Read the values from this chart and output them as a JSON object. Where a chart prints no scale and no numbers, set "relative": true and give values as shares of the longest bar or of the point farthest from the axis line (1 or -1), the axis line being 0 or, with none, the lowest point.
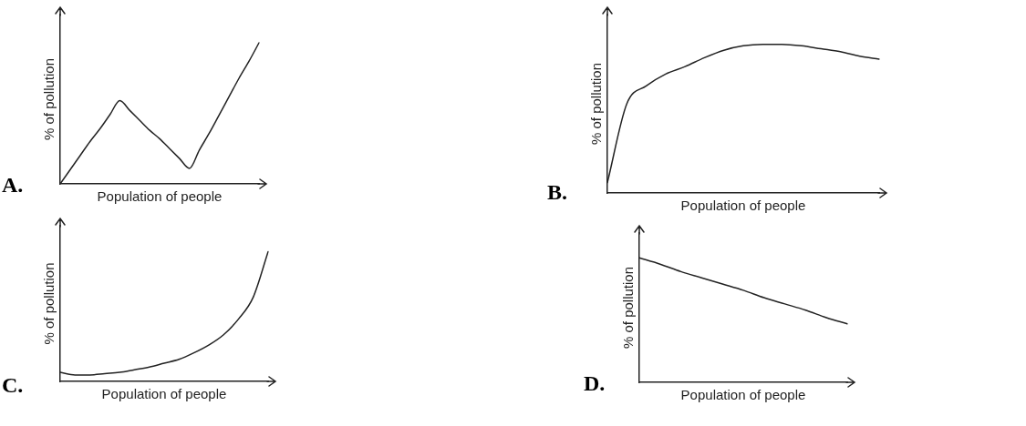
{
  "chart_data": [
    {
      "type": "line",
      "title": "A.",
      "xlabel": "Population of people",
      "ylabel": "% of pollution",
      "relative": true,
      "tick_labels": false,
      "grid": false,
      "legend": false,
      "marker": "none",
      "line_style": "solid",
      "categories": [
        null,
        null,
        null,
        null,
        null,
        null,
        null,
        null,
        null,
        null,
        null,
        null,
        null,
        null,
        null,
        null,
        null,
        null,
        null,
        null,
        null
      ],
      "series": [
        {
          "color": "#222222",
          "values": [
            0,
            0.1,
            0.2,
            0.3,
            0.39,
            0.49,
            0.59,
            0.52,
            0.45,
            0.38,
            0.32,
            0.25,
            0.18,
            0.11,
            0.24,
            0.36,
            0.49,
            0.62,
            0.75,
            0.87,
            1
          ]
        }
      ]
    },
    {
      "type": "line",
      "title": "B.",
      "xlabel": "Population of people",
      "ylabel": "% of pollution",
      "relative": true,
      "tick_labels": false,
      "grid": false,
      "legend": false,
      "marker": "none",
      "line_style": "solid",
      "categories": [
        null,
        null,
        null,
        null,
        null,
        null,
        null,
        null,
        null,
        null,
        null,
        null,
        null,
        null,
        null
      ],
      "series": [
        {
          "color": "#222222",
          "values": [
            0.07,
            0.6,
            0.72,
            0.8,
            0.85,
            0.91,
            0.96,
            0.99,
            1,
            1,
            0.99,
            0.97,
            0.95,
            0.92,
            0.9
          ]
        }
      ]
    },
    {
      "type": "line",
      "title": "C.",
      "xlabel": "Population of people",
      "ylabel": "% of pollution",
      "relative": true,
      "tick_labels": false,
      "grid": false,
      "legend": false,
      "marker": "none",
      "line_style": "solid",
      "categories": [
        null,
        null,
        null,
        null,
        null,
        null,
        null,
        null,
        null,
        null,
        null,
        null,
        null,
        null,
        null
      ],
      "series": [
        {
          "color": "#222222",
          "values": [
            0.07,
            0.05,
            0.05,
            0.06,
            0.07,
            0.09,
            0.11,
            0.14,
            0.17,
            0.22,
            0.28,
            0.36,
            0.48,
            0.65,
            1
          ]
        }
      ]
    },
    {
      "type": "line",
      "title": "D.",
      "xlabel": "Population of people",
      "ylabel": "% of pollution",
      "relative": true,
      "tick_labels": false,
      "grid": false,
      "legend": false,
      "marker": "none",
      "line_style": "solid",
      "categories": [
        null,
        null,
        null,
        null,
        null,
        null,
        null,
        null,
        null,
        null,
        null
      ],
      "series": [
        {
          "color": "#222222",
          "values": [
            1,
            0.95,
            0.89,
            0.84,
            0.79,
            0.74,
            0.68,
            0.63,
            0.58,
            0.52,
            0.47
          ]
        }
      ]
    }
  ]
}
